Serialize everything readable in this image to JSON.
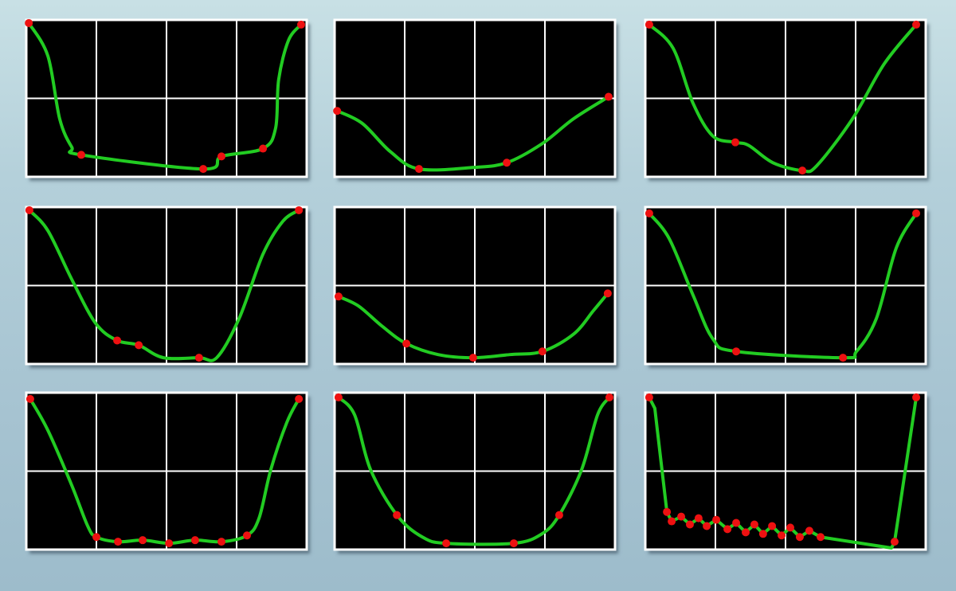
{
  "style": {
    "background": "#000000",
    "grid": "#ffffff",
    "curve": "#22cc22",
    "marker": "#ee1111"
  },
  "chart_data": [
    {
      "type": "line",
      "grid": true,
      "grid_divisions": {
        "x": 4,
        "y": 2
      },
      "xlim": [
        0,
        1
      ],
      "ylim": [
        0,
        1
      ],
      "smooth": true,
      "curve": [
        [
          0.009,
          0.98
        ],
        [
          0.077,
          0.77
        ],
        [
          0.119,
          0.37
        ],
        [
          0.162,
          0.19
        ],
        [
          0.196,
          0.14
        ],
        [
          0.631,
          0.05
        ],
        [
          0.696,
          0.13
        ],
        [
          0.844,
          0.18
        ],
        [
          0.889,
          0.31
        ],
        [
          0.9,
          0.62
        ],
        [
          0.935,
          0.87
        ],
        [
          0.98,
          0.97
        ]
      ],
      "markers": [
        [
          0.009,
          0.98
        ],
        [
          0.196,
          0.14
        ],
        [
          0.631,
          0.05
        ],
        [
          0.696,
          0.13
        ],
        [
          0.844,
          0.18
        ],
        [
          0.98,
          0.97
        ]
      ]
    },
    {
      "type": "line",
      "grid": true,
      "grid_divisions": {
        "x": 4,
        "y": 2
      },
      "xlim": [
        0,
        1
      ],
      "ylim": [
        0,
        1
      ],
      "smooth": true,
      "curve": [
        [
          0.009,
          0.42
        ],
        [
          0.099,
          0.34
        ],
        [
          0.199,
          0.16
        ],
        [
          0.301,
          0.05
        ],
        [
          0.497,
          0.06
        ],
        [
          0.614,
          0.09
        ],
        [
          0.739,
          0.21
        ],
        [
          0.852,
          0.37
        ],
        [
          0.977,
          0.51
        ]
      ],
      "markers": [
        [
          0.009,
          0.42
        ],
        [
          0.301,
          0.05
        ],
        [
          0.614,
          0.09
        ],
        [
          0.977,
          0.51
        ]
      ]
    },
    {
      "type": "line",
      "grid": true,
      "grid_divisions": {
        "x": 4,
        "y": 2
      },
      "xlim": [
        0,
        1
      ],
      "ylim": [
        0,
        1
      ],
      "smooth": true,
      "curve": [
        [
          0.014,
          0.97
        ],
        [
          0.099,
          0.82
        ],
        [
          0.17,
          0.47
        ],
        [
          0.241,
          0.26
        ],
        [
          0.321,
          0.22
        ],
        [
          0.369,
          0.2
        ],
        [
          0.455,
          0.09
        ],
        [
          0.56,
          0.04
        ],
        [
          0.611,
          0.07
        ],
        [
          0.739,
          0.37
        ],
        [
          0.852,
          0.72
        ],
        [
          0.966,
          0.97
        ]
      ],
      "markers": [
        [
          0.014,
          0.97
        ],
        [
          0.321,
          0.22
        ],
        [
          0.56,
          0.04
        ],
        [
          0.966,
          0.97
        ]
      ]
    },
    {
      "type": "line",
      "grid": true,
      "grid_divisions": {
        "x": 4,
        "y": 2
      },
      "xlim": [
        0,
        1
      ],
      "ylim": [
        0,
        1
      ],
      "smooth": true,
      "curve": [
        [
          0.011,
          0.98
        ],
        [
          0.077,
          0.85
        ],
        [
          0.162,
          0.54
        ],
        [
          0.247,
          0.26
        ],
        [
          0.324,
          0.15
        ],
        [
          0.401,
          0.12
        ],
        [
          0.489,
          0.04
        ],
        [
          0.616,
          0.04
        ],
        [
          0.679,
          0.04
        ],
        [
          0.759,
          0.29
        ],
        [
          0.844,
          0.7
        ],
        [
          0.915,
          0.91
        ],
        [
          0.972,
          0.98
        ]
      ],
      "markers": [
        [
          0.011,
          0.98
        ],
        [
          0.324,
          0.15
        ],
        [
          0.401,
          0.12
        ],
        [
          0.616,
          0.04
        ],
        [
          0.972,
          0.98
        ]
      ]
    },
    {
      "type": "line",
      "grid": true,
      "grid_divisions": {
        "x": 4,
        "y": 2
      },
      "xlim": [
        0,
        1
      ],
      "ylim": [
        0,
        1
      ],
      "smooth": true,
      "curve": [
        [
          0.014,
          0.43
        ],
        [
          0.085,
          0.37
        ],
        [
          0.17,
          0.24
        ],
        [
          0.256,
          0.13
        ],
        [
          0.369,
          0.06
        ],
        [
          0.494,
          0.04
        ],
        [
          0.625,
          0.06
        ],
        [
          0.741,
          0.08
        ],
        [
          0.852,
          0.19
        ],
        [
          0.923,
          0.34
        ],
        [
          0.974,
          0.45
        ]
      ],
      "markers": [
        [
          0.014,
          0.43
        ],
        [
          0.256,
          0.13
        ],
        [
          0.494,
          0.04
        ],
        [
          0.741,
          0.08
        ],
        [
          0.974,
          0.45
        ]
      ]
    },
    {
      "type": "line",
      "grid": true,
      "grid_divisions": {
        "x": 4,
        "y": 2
      },
      "xlim": [
        0,
        1
      ],
      "ylim": [
        0,
        1
      ],
      "smooth": true,
      "curve": [
        [
          0.014,
          0.96
        ],
        [
          0.085,
          0.8
        ],
        [
          0.17,
          0.44
        ],
        [
          0.241,
          0.16
        ],
        [
          0.324,
          0.08
        ],
        [
          0.705,
          0.04
        ],
        [
          0.753,
          0.08
        ],
        [
          0.824,
          0.29
        ],
        [
          0.895,
          0.74
        ],
        [
          0.966,
          0.96
        ]
      ],
      "markers": [
        [
          0.014,
          0.96
        ],
        [
          0.324,
          0.08
        ],
        [
          0.705,
          0.04
        ],
        [
          0.966,
          0.96
        ]
      ]
    },
    {
      "type": "line",
      "grid": true,
      "grid_divisions": {
        "x": 4,
        "y": 2
      },
      "xlim": [
        0,
        1
      ],
      "ylim": [
        0,
        1
      ],
      "smooth": true,
      "curve": [
        [
          0.014,
          0.96
        ],
        [
          0.077,
          0.76
        ],
        [
          0.162,
          0.41
        ],
        [
          0.219,
          0.15
        ],
        [
          0.25,
          0.08
        ],
        [
          0.327,
          0.05
        ],
        [
          0.415,
          0.06
        ],
        [
          0.509,
          0.04
        ],
        [
          0.602,
          0.06
        ],
        [
          0.696,
          0.05
        ],
        [
          0.787,
          0.09
        ],
        [
          0.83,
          0.2
        ],
        [
          0.872,
          0.51
        ],
        [
          0.929,
          0.81
        ],
        [
          0.972,
          0.96
        ]
      ],
      "markers": [
        [
          0.014,
          0.96
        ],
        [
          0.25,
          0.08
        ],
        [
          0.327,
          0.05
        ],
        [
          0.415,
          0.06
        ],
        [
          0.509,
          0.04
        ],
        [
          0.602,
          0.06
        ],
        [
          0.696,
          0.05
        ],
        [
          0.787,
          0.09
        ],
        [
          0.972,
          0.96
        ]
      ]
    },
    {
      "type": "line",
      "grid": true,
      "grid_divisions": {
        "x": 4,
        "y": 2
      },
      "xlim": [
        0,
        1
      ],
      "ylim": [
        0,
        1
      ],
      "smooth": true,
      "curve": [
        [
          0.014,
          0.97
        ],
        [
          0.071,
          0.86
        ],
        [
          0.128,
          0.51
        ],
        [
          0.222,
          0.22
        ],
        [
          0.313,
          0.08
        ],
        [
          0.398,
          0.04
        ],
        [
          0.639,
          0.04
        ],
        [
          0.739,
          0.1
        ],
        [
          0.801,
          0.22
        ],
        [
          0.881,
          0.51
        ],
        [
          0.938,
          0.86
        ],
        [
          0.98,
          0.97
        ]
      ],
      "markers": [
        [
          0.014,
          0.97
        ],
        [
          0.222,
          0.22
        ],
        [
          0.398,
          0.04
        ],
        [
          0.639,
          0.04
        ],
        [
          0.801,
          0.22
        ],
        [
          0.98,
          0.97
        ]
      ]
    },
    {
      "type": "line",
      "grid": true,
      "grid_divisions": {
        "x": 4,
        "y": 2
      },
      "xlim": [
        0,
        1
      ],
      "ylim": [
        0,
        1
      ],
      "smooth": false,
      "curve": [
        [
          0.014,
          0.97
        ],
        [
          0.034,
          0.9
        ],
        [
          0.043,
          0.76
        ],
        [
          0.077,
          0.24
        ],
        [
          0.094,
          0.18
        ],
        [
          0.128,
          0.21
        ],
        [
          0.159,
          0.16
        ],
        [
          0.19,
          0.2
        ],
        [
          0.219,
          0.15
        ],
        [
          0.253,
          0.19
        ],
        [
          0.293,
          0.13
        ],
        [
          0.324,
          0.17
        ],
        [
          0.358,
          0.11
        ],
        [
          0.389,
          0.16
        ],
        [
          0.42,
          0.1
        ],
        [
          0.452,
          0.15
        ],
        [
          0.486,
          0.09
        ],
        [
          0.517,
          0.14
        ],
        [
          0.551,
          0.08
        ],
        [
          0.585,
          0.12
        ],
        [
          0.625,
          0.08
        ],
        [
          0.878,
          0.01
        ],
        [
          0.889,
          0.05
        ],
        [
          0.966,
          0.97
        ]
      ],
      "markers": [
        [
          0.014,
          0.97
        ],
        [
          0.077,
          0.24
        ],
        [
          0.094,
          0.18
        ],
        [
          0.128,
          0.21
        ],
        [
          0.159,
          0.16
        ],
        [
          0.19,
          0.2
        ],
        [
          0.219,
          0.15
        ],
        [
          0.253,
          0.19
        ],
        [
          0.293,
          0.13
        ],
        [
          0.324,
          0.17
        ],
        [
          0.358,
          0.11
        ],
        [
          0.389,
          0.16
        ],
        [
          0.42,
          0.1
        ],
        [
          0.452,
          0.15
        ],
        [
          0.486,
          0.09
        ],
        [
          0.517,
          0.14
        ],
        [
          0.551,
          0.08
        ],
        [
          0.585,
          0.12
        ],
        [
          0.625,
          0.08
        ],
        [
          0.889,
          0.05
        ],
        [
          0.966,
          0.97
        ]
      ]
    }
  ]
}
